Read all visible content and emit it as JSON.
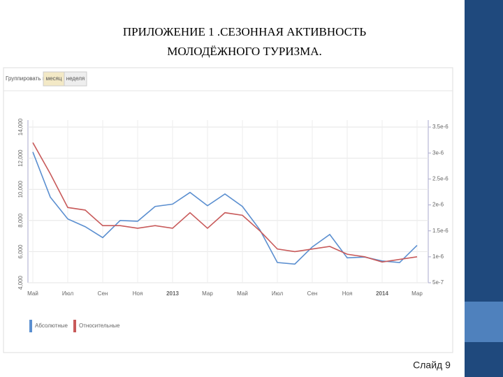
{
  "chart_data": {
    "type": "line",
    "title": [
      "ПРИЛОЖЕНИЕ 1 .СЕЗОННАЯ АКТИВНОСТЬ",
      "МОЛОДЁЖНОГО ТУРИЗМА."
    ],
    "categories": [
      "Май",
      null,
      "Июл",
      null,
      "Сен",
      null,
      "Ноя",
      null,
      "2013",
      null,
      "Мар",
      null,
      "Май",
      null,
      "Июл",
      null,
      "Сен",
      null,
      "Ноя",
      null,
      "2014",
      null,
      "Мар"
    ],
    "series": [
      {
        "name": "Абсолютные",
        "color": "#5b8fd0",
        "values": [
          12400,
          9500,
          8100,
          7600,
          6900,
          8000,
          7950,
          8900,
          9050,
          9800,
          8950,
          9700,
          8900,
          7400,
          5300,
          5200,
          6300,
          7100,
          5600,
          5650,
          5400,
          5300,
          6400
        ]
      },
      {
        "name": "Относительные",
        "color": "#c85a5a",
        "axis": "y2",
        "values": [
          3.2e-06,
          2.6e-06,
          1.95e-06,
          1.9e-06,
          1.6e-06,
          1.6e-06,
          1.55e-06,
          1.6e-06,
          1.55e-06,
          1.85e-06,
          1.55e-06,
          1.85e-06,
          1.8e-06,
          1.5e-06,
          1.15e-06,
          1.1e-06,
          1.15e-06,
          1.2e-06,
          1.05e-06,
          1e-06,
          9e-07,
          9.5e-07,
          1e-06
        ]
      }
    ],
    "ylim": [
      4000,
      14000
    ],
    "yticks": [
      {
        "value": 4000,
        "label": "4,000"
      },
      {
        "value": 6000,
        "label": "6,000"
      },
      {
        "value": 8000,
        "label": "8,000"
      },
      {
        "value": 10000,
        "label": "10,000"
      },
      {
        "value": 12000,
        "label": "12,000"
      },
      {
        "value": 14000,
        "label": "14,000"
      }
    ],
    "y2lim": [
      5e-07,
      3.5e-06
    ],
    "y2ticks": [
      {
        "value": 5e-07,
        "label": "5e-7"
      },
      {
        "value": 1e-06,
        "label": "1e-6"
      },
      {
        "value": 1.5e-06,
        "label": "1.5e-6"
      },
      {
        "value": 2e-06,
        "label": "2e-6"
      },
      {
        "value": 2.5e-06,
        "label": "2.5e-6"
      },
      {
        "value": 3e-06,
        "label": "3e-6"
      },
      {
        "value": 3.5e-06,
        "label": "3.5e-6"
      }
    ],
    "grid": true
  },
  "toolbar": {
    "label": "Группировать по:",
    "buttons": [
      "месяц",
      "неделя"
    ]
  },
  "slide_number": "Слайд 9"
}
